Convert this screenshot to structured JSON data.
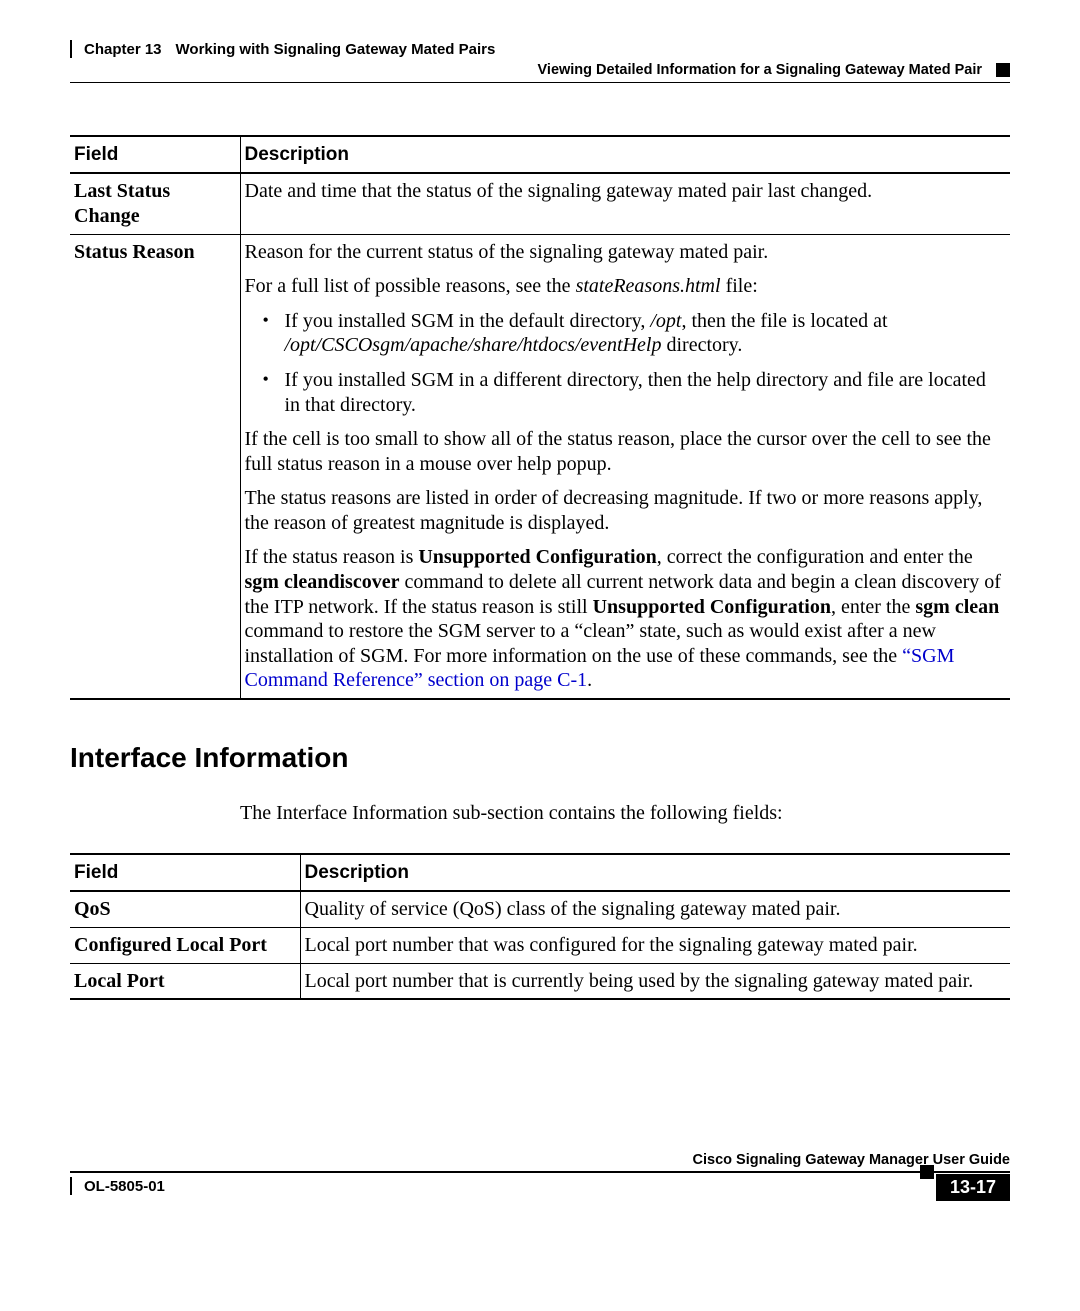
{
  "header": {
    "chapter": "Chapter 13",
    "title": "Working with Signaling Gateway Mated Pairs",
    "subtitle": "Viewing Detailed Information for a Signaling Gateway Mated Pair"
  },
  "table1": {
    "head": {
      "c1": "Field",
      "c2": "Description"
    },
    "rows": [
      {
        "field": "Last Status Change",
        "desc": {
          "p1": "Date and time that the status of the signaling gateway mated pair last changed."
        }
      },
      {
        "field": "Status Reason",
        "desc": {
          "p1": "Reason for the current status of the signaling gateway mated pair.",
          "p2a": "For a full list of possible reasons, see the ",
          "p2i": "stateReasons.html",
          "p2b": " file:",
          "b1a": "If you installed SGM in the default directory, ",
          "b1i1": "/opt",
          "b1b": ", then the file is located at ",
          "b1i2": "/opt/CSCOsgm/apache/share/htdocs/eventHelp",
          "b1c": " directory.",
          "b2": "If you installed SGM in a different directory, then the help directory and file are located in that directory.",
          "p3": "If the cell is too small to show all of the status reason, place the cursor over the cell to see the full status reason in a mouse over help popup.",
          "p4": "The status reasons are listed in order of decreasing magnitude. If two or more reasons apply, the reason of greatest magnitude is displayed.",
          "p5a": "If the status reason is ",
          "p5b1": "Unsupported Configuration",
          "p5c": ", correct the configuration and enter the ",
          "p5b2": "sgm cleandiscover",
          "p5d": " command to delete all current network data and begin a clean discovery of the ITP network. If the status reason is still ",
          "p5b3": "Unsupported Configuration",
          "p5e": ", enter the ",
          "p5b4": "sgm clean",
          "p5f": " command to restore the SGM server to a “clean” state, such as would exist after a new installation of SGM. For more information on the use of these commands, see the ",
          "p5link": "“SGM Command Reference” section on page C-1",
          "p5g": "."
        }
      }
    ]
  },
  "section": {
    "heading": "Interface Information",
    "intro": "The Interface Information sub-section contains the following fields:"
  },
  "table2": {
    "head": {
      "c1": "Field",
      "c2": "Description"
    },
    "rows": [
      {
        "field": "QoS",
        "desc": "Quality of service (QoS) class of the signaling gateway mated pair."
      },
      {
        "field": "Configured Local Port",
        "desc": "Local port number that was configured for the signaling gateway mated pair."
      },
      {
        "field": "Local Port",
        "desc": "Local port number that is currently being used by the signaling gateway mated pair."
      }
    ]
  },
  "footer": {
    "guide": "Cisco Signaling Gateway Manager User Guide",
    "doc": "OL-5805-01",
    "page": "13-17"
  },
  "colors": {
    "link": "#0000cc",
    "text": "#000000",
    "bg": "#ffffff"
  }
}
